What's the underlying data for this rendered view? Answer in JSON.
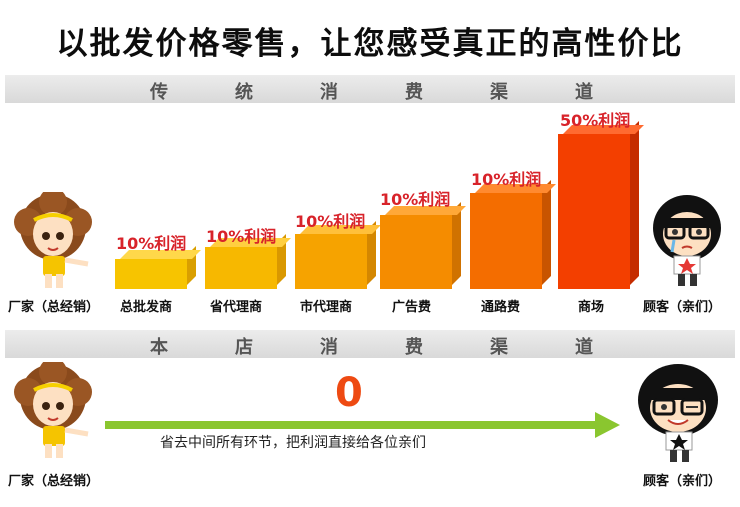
{
  "title": "以批发价格零售，让您感受真正的高性价比",
  "traditional": {
    "band_chars": [
      "传",
      "统",
      "消",
      "费",
      "渠",
      "道"
    ],
    "manufacturer": "厂家（总经销）",
    "customer": "顾客（亲们）",
    "stages": [
      {
        "label": "总批发商",
        "profit": "10%利润",
        "level": 1
      },
      {
        "label": "省代理商",
        "profit": "10%利润",
        "level": 2
      },
      {
        "label": "市代理商",
        "profit": "10%利润",
        "level": 3
      },
      {
        "label": "广告费",
        "profit": "10%利润",
        "level": 4
      },
      {
        "label": "通路费",
        "profit": "10%利润",
        "level": 5
      },
      {
        "label": "商场",
        "profit": "50%利润",
        "level": 6
      }
    ]
  },
  "store": {
    "band_chars": [
      "本",
      "店",
      "消",
      "费",
      "渠",
      "道"
    ],
    "manufacturer": "厂家（总经销）",
    "customer": "顾客（亲们）",
    "zero": "0",
    "arrow_text": "省去中间所有环节，把利润直接给各位亲们"
  },
  "colors": {
    "bars": [
      "#f7c400",
      "#f7b800",
      "#f6a300",
      "#f58c00",
      "#f46d00",
      "#f33f00"
    ],
    "profit_text": "#d8232a",
    "arrow": "#8ac62f",
    "zero": "#ee4a12"
  }
}
